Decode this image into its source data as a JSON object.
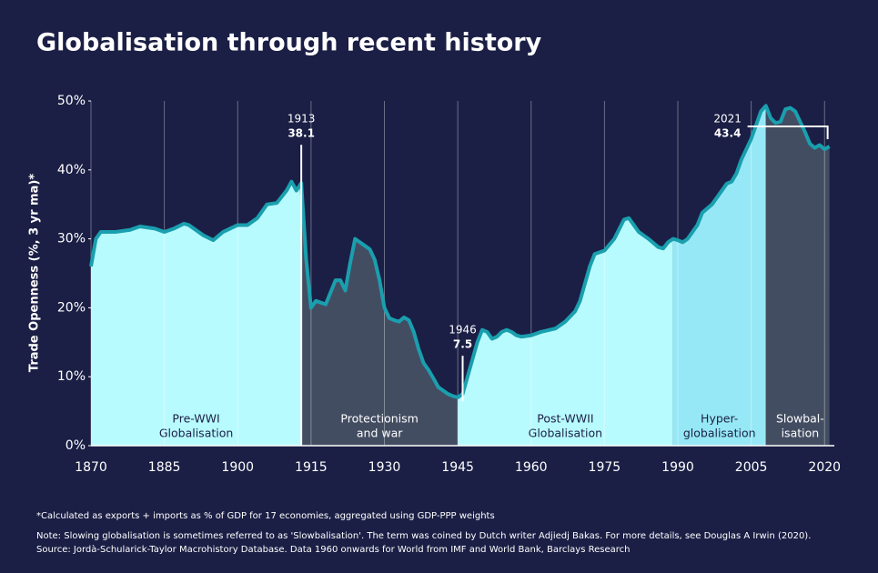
{
  "chart_data": {
    "type": "area",
    "title": "Globalisation through recent history",
    "ylabel": "Trade Openness (%, 3 yr ma)*",
    "xlim": [
      1870,
      2022
    ],
    "ylim": [
      0,
      50
    ],
    "xticks": [
      1870,
      1885,
      1900,
      1915,
      1930,
      1945,
      1960,
      1975,
      1990,
      2005,
      2020
    ],
    "yticks": [
      {
        "value": 0,
        "label": "0%"
      },
      {
        "value": 10,
        "label": "10%"
      },
      {
        "value": 20,
        "label": "20%"
      },
      {
        "value": 30,
        "label": "30%"
      },
      {
        "value": 40,
        "label": "40%"
      },
      {
        "value": 50,
        "label": "50%"
      }
    ],
    "grid": true,
    "line_color": "#1a9fae",
    "x": [
      1870,
      1871,
      1872,
      1875,
      1878,
      1880,
      1883,
      1885,
      1887,
      1889,
      1890,
      1893,
      1895,
      1897,
      1900,
      1902,
      1904,
      1906,
      1908,
      1910,
      1911,
      1912,
      1913,
      1914,
      1915,
      1916,
      1918,
      1920,
      1921,
      1922,
      1923,
      1924,
      1925,
      1926,
      1927,
      1928,
      1929,
      1930,
      1931,
      1932,
      1933,
      1934,
      1935,
      1936,
      1937,
      1938,
      1939,
      1940,
      1941,
      1942,
      1943,
      1944,
      1945,
      1946,
      1947,
      1948,
      1949,
      1950,
      1951,
      1952,
      1953,
      1954,
      1955,
      1956,
      1957,
      1958,
      1960,
      1962,
      1965,
      1967,
      1969,
      1970,
      1972,
      1973,
      1975,
      1977,
      1979,
      1980,
      1981,
      1982,
      1984,
      1986,
      1987,
      1988,
      1989,
      1990,
      1991,
      1992,
      1994,
      1995,
      1997,
      1999,
      2000,
      2001,
      2002,
      2003,
      2005,
      2006,
      2007,
      2008,
      2009,
      2010,
      2011,
      2012,
      2013,
      2014,
      2015,
      2016,
      2017,
      2018,
      2019,
      2020,
      2021
    ],
    "values": [
      26,
      30,
      31,
      31,
      31.3,
      31.8,
      31.5,
      31,
      31.5,
      32.2,
      32,
      30.5,
      29.8,
      31,
      32,
      32,
      33,
      35,
      35.2,
      37,
      38.3,
      37,
      38.1,
      27,
      20,
      21,
      20.5,
      24,
      24,
      22.5,
      26.5,
      30,
      29.5,
      29,
      28.5,
      27,
      24,
      20,
      18.5,
      18.2,
      18,
      18.6,
      18.2,
      16.5,
      14,
      12,
      11,
      9.8,
      8.5,
      8,
      7.5,
      7.2,
      7,
      7.5,
      10,
      12.5,
      15,
      16.8,
      16.5,
      15.5,
      15.8,
      16.5,
      16.8,
      16.5,
      16,
      15.8,
      16,
      16.5,
      17,
      18,
      19.5,
      21,
      26,
      27.8,
      28.3,
      30,
      32.8,
      33,
      32,
      31,
      30,
      28.8,
      28.6,
      29.5,
      30,
      29.8,
      29.5,
      30,
      32,
      33.8,
      35,
      37,
      38,
      38.3,
      39.5,
      41.5,
      44.5,
      46.5,
      48.5,
      49.3,
      47.5,
      46.8,
      47,
      48.8,
      49,
      48.5,
      47,
      45.5,
      43.8,
      43.2,
      43.6,
      43,
      43.4
    ],
    "eras": [
      {
        "lines": [
          "Pre-WWI",
          "Globalisation"
        ],
        "start": 1870,
        "end": 1913,
        "color": "#b8fbff"
      },
      {
        "lines": [
          "Protectionism",
          "and war"
        ],
        "start": 1913,
        "end": 1945,
        "color": "#434d62"
      },
      {
        "lines": [
          "Post-WWII",
          "Globalisation"
        ],
        "start": 1945,
        "end": 1989,
        "color": "#b8fbff"
      },
      {
        "lines": [
          "Hyper-",
          "globalisation"
        ],
        "start": 1989,
        "end": 2008,
        "color": "#97e8f6"
      },
      {
        "lines": [
          "Slowbal-",
          "isation"
        ],
        "start": 2008,
        "end": 2022,
        "color": "#434d62"
      }
    ],
    "annotations": [
      {
        "year": 1913,
        "value": 38.1
      },
      {
        "year": 1946,
        "value": 7.5
      },
      {
        "year": 2021,
        "value": 43.4
      }
    ],
    "footnotes": [
      "*Calculated as exports + imports as % of GDP for 17 economies, aggregated using GDP-PPP weights",
      "Note: Slowing globalisation is sometimes referred to as 'Slowbalisation'. The term was coined by Dutch writer Adjiedj Bakas. For more details, see Douglas A Irwin (2020).",
      "Source: Jordà-Schularick-Taylor Macrohistory Database. Data 1960 onwards for World from IMF and World Bank, Barclays Research"
    ]
  }
}
